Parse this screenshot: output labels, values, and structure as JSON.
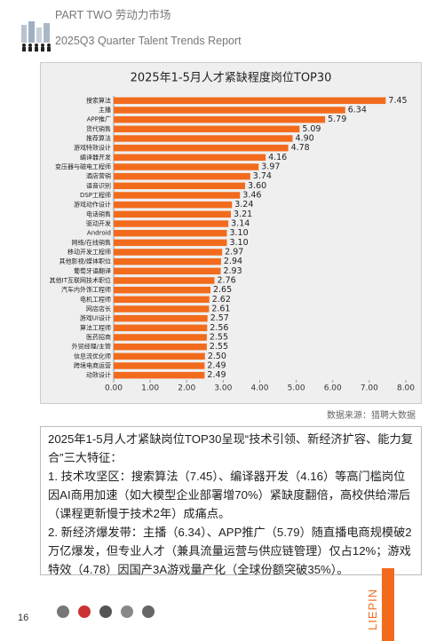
{
  "header": {
    "part": "PART TWO 劳动力市场",
    "report": "2025Q3 Quarter Talent Trends Report"
  },
  "chart_data": {
    "type": "bar",
    "title": "2025年1-5月人才紧缺程度岗位TOP30",
    "color": "#f26b1d",
    "categories": [
      "搜索算法",
      "主播",
      "APP推广",
      "货代销售",
      "推荐算法",
      "游戏特效设计",
      "编译器开发",
      "变压器与磁电工程师",
      "酒店营销",
      "语音识别",
      "DSP工程师",
      "游戏动作设计",
      "电话销售",
      "驱动开发",
      "Android",
      "网络/在线销售",
      "移动开发工程师",
      "其他影视/媒体职位",
      "葡萄牙语翻译",
      "其他IT互联网技术职位",
      "汽车内外饰工程师",
      "电机工程师",
      "网店店长",
      "游戏UI设计",
      "算法工程师",
      "医药招商",
      "外贸经理/主管",
      "信息流优化师",
      "跨境电商运营",
      "动效设计"
    ],
    "values": [
      7.45,
      6.34,
      5.79,
      5.09,
      4.9,
      4.78,
      4.16,
      3.97,
      3.74,
      3.6,
      3.46,
      3.24,
      3.21,
      3.14,
      3.1,
      3.1,
      2.97,
      2.94,
      2.93,
      2.76,
      2.65,
      2.62,
      2.61,
      2.57,
      2.56,
      2.55,
      2.55,
      2.5,
      2.49,
      2.49
    ],
    "value_labels": [
      "7.45",
      "6.34",
      "5.79",
      "5.09",
      "4.90",
      "4.78",
      "4.16",
      "3.97",
      "3.74",
      "3.60",
      "3.46",
      "3.24",
      "3.21",
      "3.14",
      "3.10",
      "3.10",
      "2.97",
      "2.94",
      "2.93",
      "2.76",
      "2.65",
      "2.62",
      "2.61",
      "2.57",
      "2.56",
      "2.55",
      "2.55",
      "2.50",
      "2.49",
      "2.49"
    ],
    "xlim": [
      0,
      8
    ],
    "xticks": [
      {
        "value": 0,
        "label": "0.00"
      },
      {
        "value": 1,
        "label": "1.00"
      },
      {
        "value": 2,
        "label": "2.00"
      },
      {
        "value": 3,
        "label": "3.00"
      },
      {
        "value": 4,
        "label": "4.00"
      },
      {
        "value": 5,
        "label": "5.00"
      },
      {
        "value": 6,
        "label": "6.00"
      },
      {
        "value": 7,
        "label": "7.00"
      },
      {
        "value": 8,
        "label": "8.00"
      }
    ]
  },
  "source": "数据来源：猎聘大数据",
  "text": {
    "paragraphs": [
      "2025年1-5月人才紧缺岗位TOP30呈现“技术引领、新经济扩容、能力复合”三大特征：",
      "1. 技术攻坚区：搜索算法（7.45）、编译器开发（4.16）等高门槛岗位因AI商用加速（如大模型企业部署增70%）紧缺度翻倍，高校供给滞后（课程更新慢于技术2年）成痛点。",
      "2. 新经济爆发带：主播（6.34）、APP推广（5.79）随直播电商规模破2万亿爆发，但专业人才（兼具流量运营与供应链管理）仅占12%；游戏特效（4.78）因国产3A游戏量产化（全球份额突破35%）。"
    ]
  },
  "footer": {
    "page": "16",
    "brand": "LIEPIN"
  }
}
